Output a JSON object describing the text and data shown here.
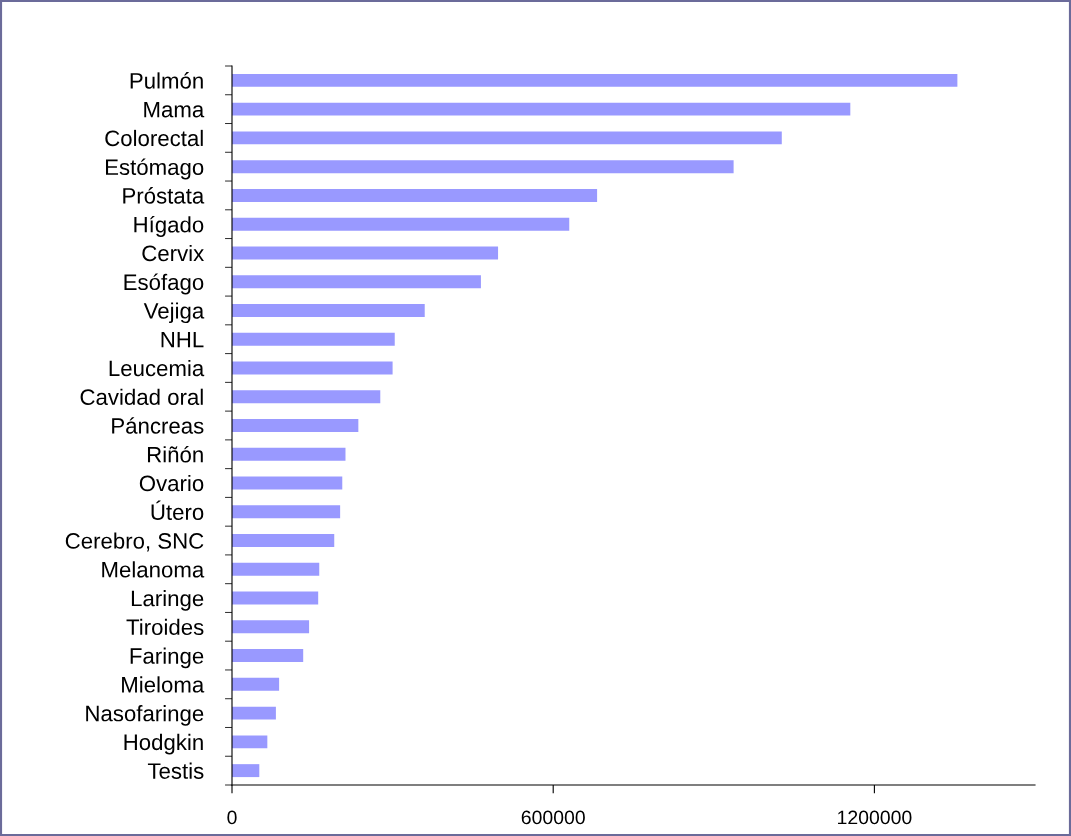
{
  "chart_data": {
    "type": "bar",
    "orientation": "horizontal",
    "categories": [
      "Pulmón",
      "Mama",
      "Colorectal",
      "Estómago",
      "Próstata",
      "Hígado",
      "Cervix",
      "Esófago",
      "Vejiga",
      "NHL",
      "Leucemia",
      "Cavidad oral",
      "Páncreas",
      "Riñón",
      "Ovario",
      "Útero",
      "Cerebro, SNC",
      "Melanoma",
      "Laringe",
      "Tiroides",
      "Faringe",
      "Mieloma",
      "Nasofaringe",
      "Hodgkin",
      "Testis"
    ],
    "values": [
      1355000,
      1155000,
      1027000,
      937000,
      682000,
      630000,
      497000,
      465000,
      360000,
      304000,
      300000,
      277000,
      236000,
      212000,
      206000,
      202000,
      191000,
      163000,
      161000,
      144000,
      133000,
      88000,
      82000,
      66000,
      51000
    ],
    "color": "#9999ff",
    "xlim": [
      0,
      1500000
    ],
    "xticks": [
      0,
      600000,
      1200000
    ],
    "grid": false,
    "legend": false
  }
}
